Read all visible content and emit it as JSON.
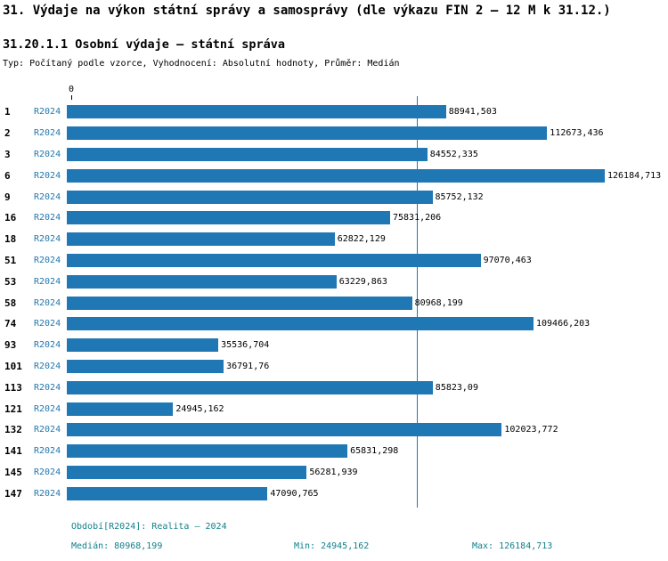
{
  "title": "31. Výdaje na výkon státní správy a samosprávy (dle výkazu FIN 2 – 12 M k 31.12.)",
  "subtitle": "31.20.1.1 Osobní výdaje – státní správa",
  "meta": "Typ: Počítaný podle vzorce, Vyhodnocení: Absolutní hodnoty, Průměr: Medián",
  "axis": {
    "zero_label": "0"
  },
  "colors": {
    "bar": "#1f77b4",
    "series_label": "#2478ad",
    "footer": "#11808c"
  },
  "chart_data": {
    "type": "bar",
    "orientation": "horizontal",
    "title": "31.20.1.1 Osobní výdaje – státní správa",
    "series_label": "R2024",
    "categories": [
      "1",
      "2",
      "3",
      "6",
      "9",
      "16",
      "18",
      "51",
      "53",
      "58",
      "74",
      "93",
      "101",
      "113",
      "121",
      "132",
      "141",
      "145",
      "147"
    ],
    "values": [
      88941.503,
      112673.436,
      84552.335,
      126184.713,
      85752.132,
      75831.206,
      62822.129,
      97070.463,
      63229.863,
      80968.199,
      109466.203,
      35536.704,
      36791.76,
      85823.09,
      24945.162,
      102023.772,
      65831.298,
      56281.939,
      47090.765
    ],
    "value_labels": [
      "88941,503",
      "112673,436",
      "84552,335",
      "126184,713",
      "85752,132",
      "75831,206",
      "62822,129",
      "97070,463",
      "63229,863",
      "80968,199",
      "109466,203",
      "35536,704",
      "36791,76",
      "85823,09",
      "24945,162",
      "102023,772",
      "65831,298",
      "56281,939",
      "47090,765"
    ],
    "xlim": [
      0,
      126184.713
    ],
    "median": 80968.199,
    "min": 24945.162,
    "max": 126184.713,
    "grid": false,
    "legend": false,
    "median_line": true
  },
  "footer": {
    "period": "Období[R2024]: Realita – 2024",
    "median": "Medián: 80968,199",
    "min": "Min: 24945,162",
    "max": "Max: 126184,713"
  }
}
